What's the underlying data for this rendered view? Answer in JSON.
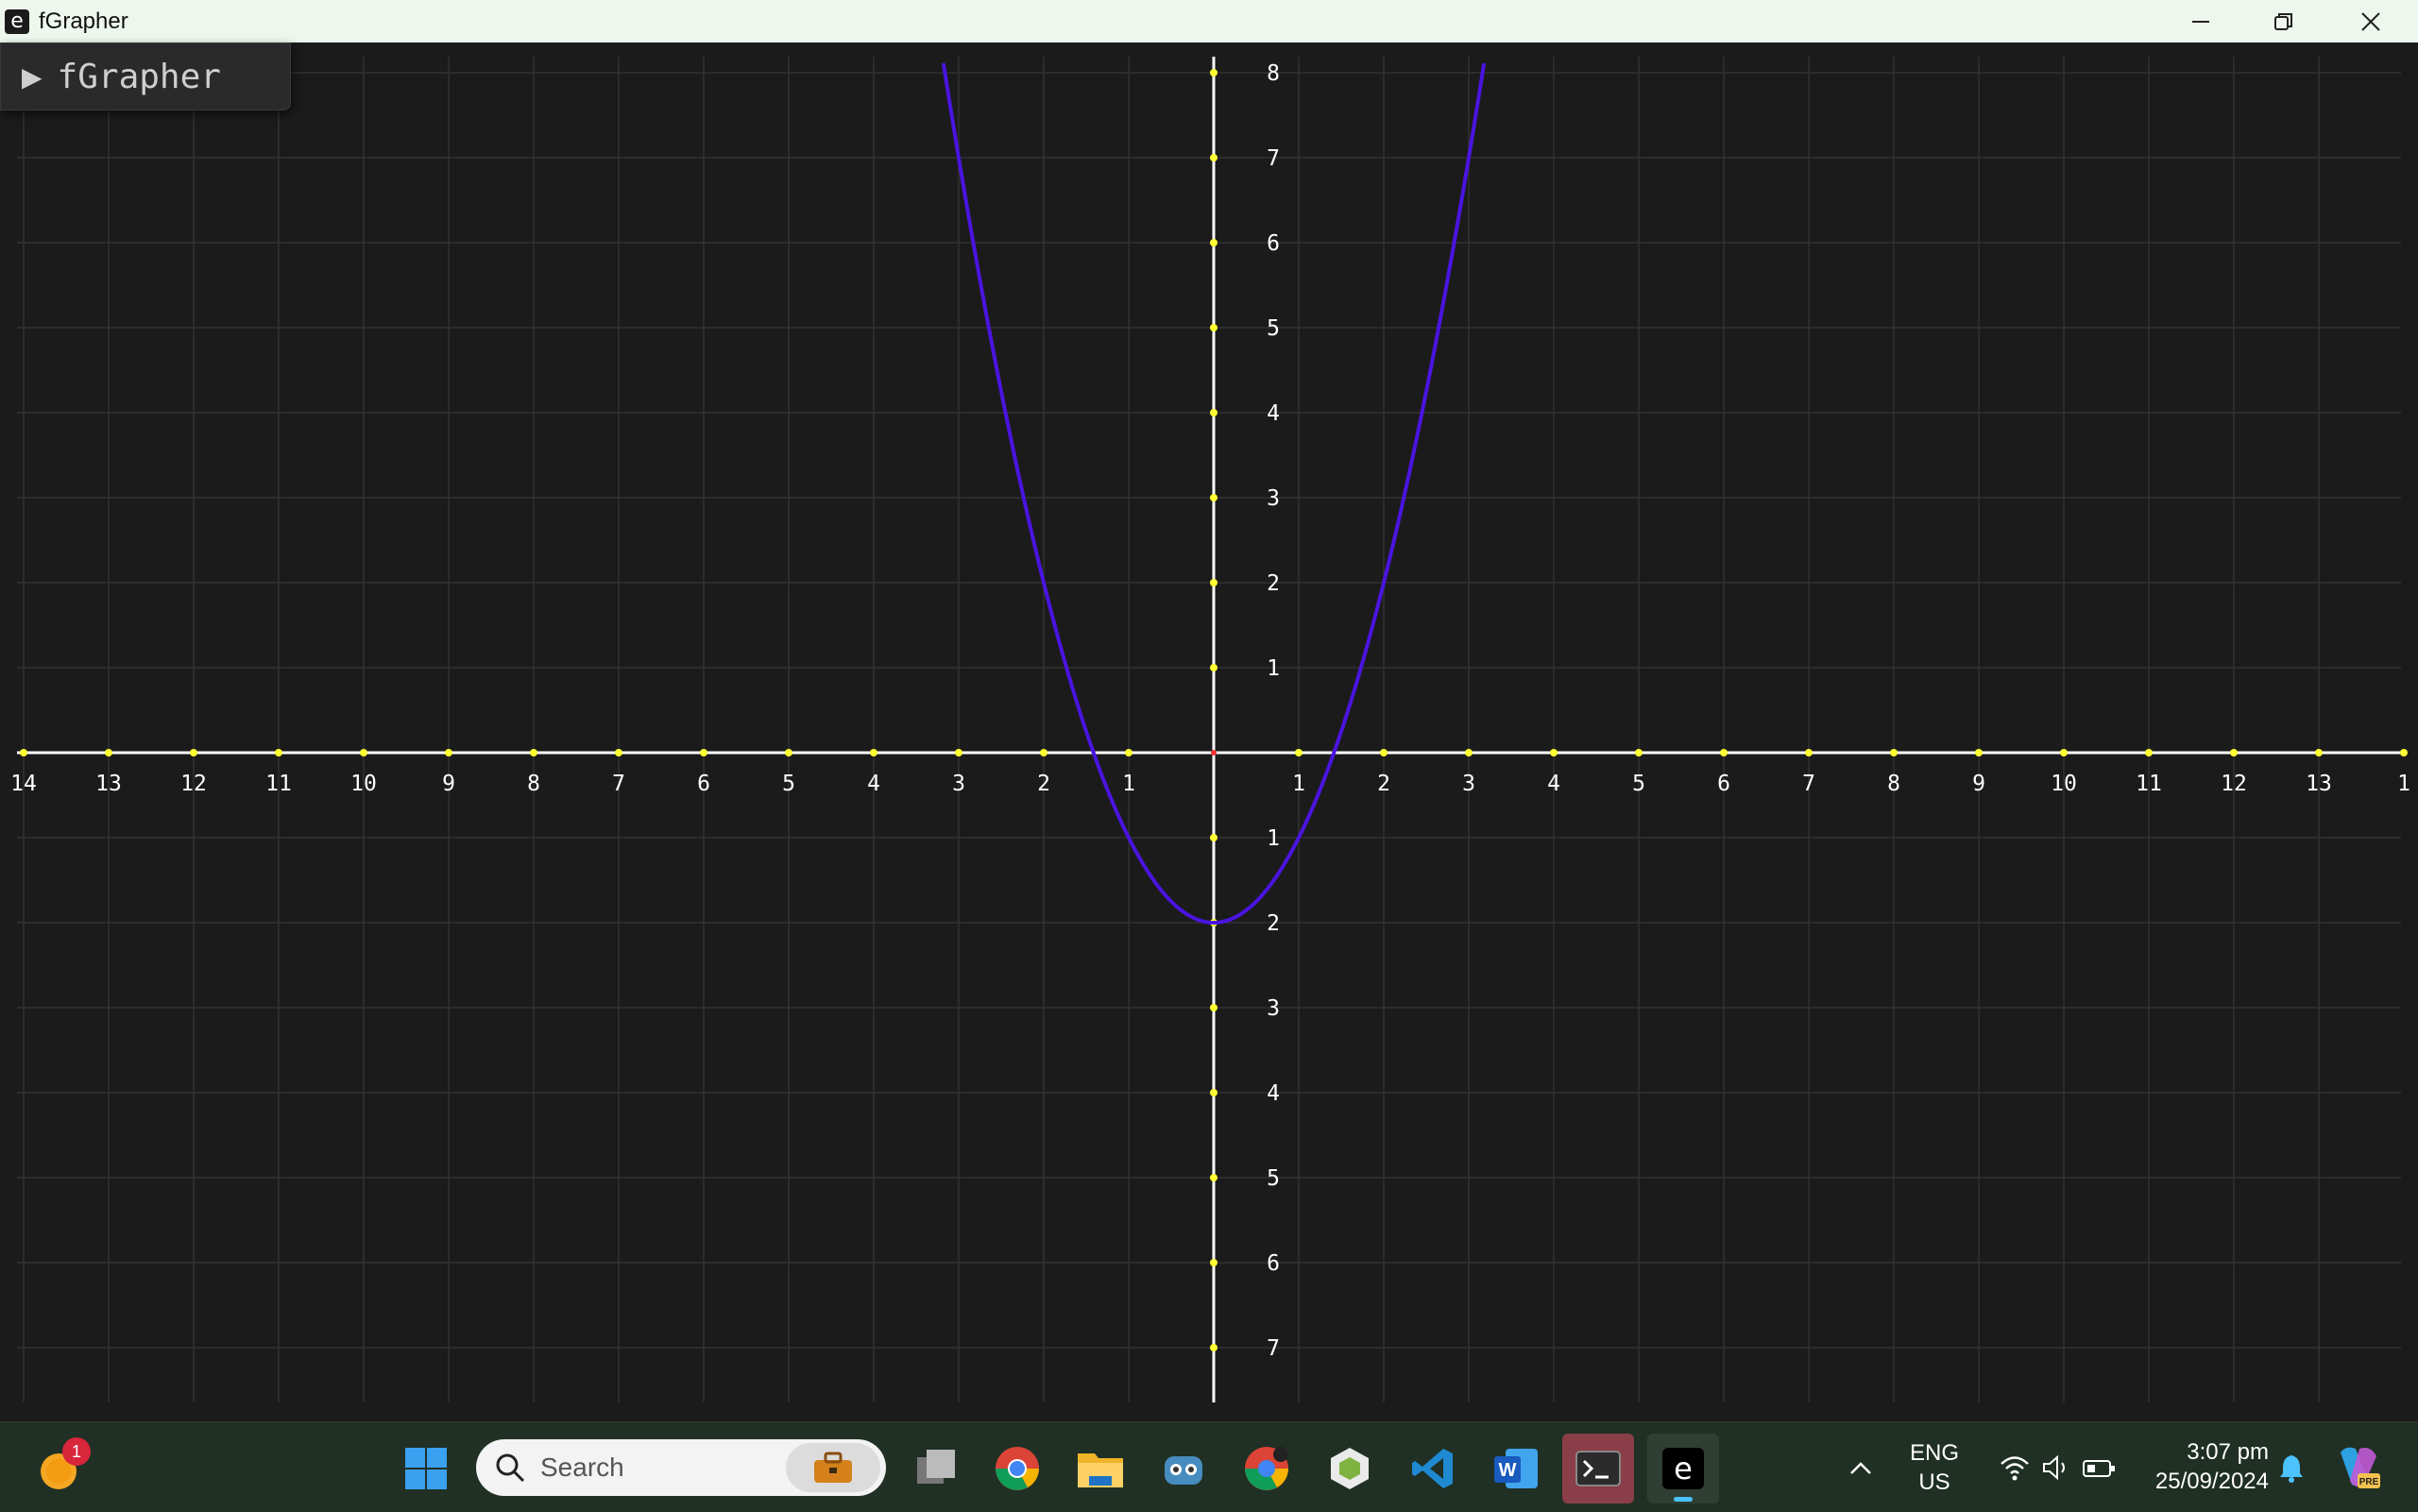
{
  "window": {
    "title": "fGrapher",
    "app_icon_letter": "e",
    "controls": [
      "minimize-icon",
      "restore-icon",
      "close-icon"
    ]
  },
  "panel": {
    "title": "fGrapher",
    "arrow": "▶"
  },
  "graph": {
    "function": "y = x^2 - 2",
    "curve_color": "#4a14e0",
    "axis_color": "#ffffff",
    "tick_dot_color": "#ffff33",
    "grid_color": "#333333",
    "x_labels_negative": [
      "14",
      "13",
      "12",
      "11",
      "10",
      "9",
      "8",
      "7",
      "6",
      "5",
      "4",
      "3",
      "2",
      "1"
    ],
    "x_labels_positive": [
      "1",
      "2",
      "3",
      "4",
      "5",
      "6",
      "7",
      "8",
      "9",
      "10",
      "11",
      "12",
      "13",
      "1"
    ],
    "y_labels_positive": [
      "8",
      "7",
      "6",
      "5",
      "4",
      "3",
      "2",
      "1"
    ],
    "y_labels_negative": [
      "1",
      "2",
      "3",
      "4",
      "5",
      "6",
      "7"
    ]
  },
  "taskbar": {
    "weather_badge": "1",
    "search_placeholder": "Search",
    "apps": [
      "windows-start-icon",
      "task-view-icon",
      "chrome-icon",
      "file-explorer-icon",
      "godot-icon",
      "chrome-canary-icon",
      "unity-icon",
      "vscode-icon",
      "word-icon",
      "terminal-icon",
      "fgrapher-icon"
    ],
    "tray": {
      "language_line1": "ENG",
      "language_line2": "US",
      "time": "3:07 pm",
      "date": "25/09/2024"
    }
  }
}
